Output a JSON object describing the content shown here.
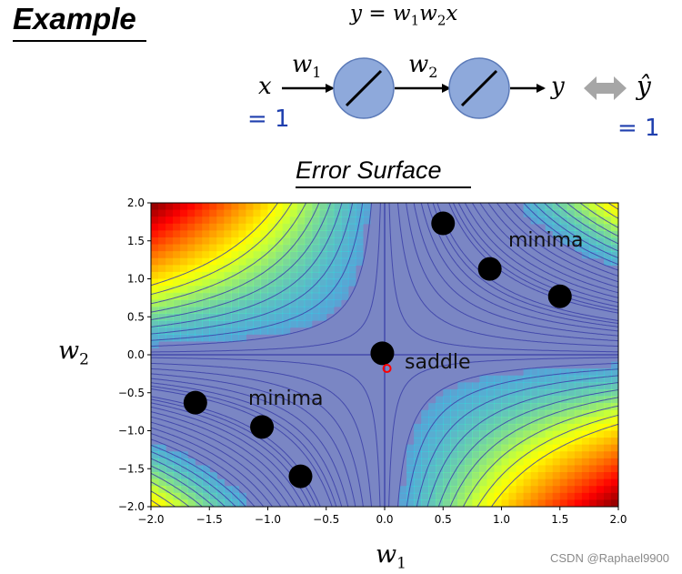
{
  "header": {
    "title": "Example",
    "equation": {
      "y": "y",
      "eq": "=",
      "w1": "w",
      "w1_sub": "1",
      "w2": "w",
      "w2_sub": "2",
      "x": "x"
    }
  },
  "network": {
    "input_label": "x",
    "input_value": "= 1",
    "w1_label": "w",
    "w1_sub": "1",
    "w2_label": "w",
    "w2_sub": "2",
    "output_label": "y",
    "target_label": "ŷ",
    "target_value": "= 1",
    "colors": {
      "neuron_fill": "#8ea9db",
      "neuron_stroke": "#5b7ab8",
      "compare_arrow": "#a6a6a6",
      "value_text": "#1f3fae"
    }
  },
  "chart_data": {
    "type": "heatmap",
    "title": "Error Surface",
    "xlabel": "w",
    "xlabel_sub": "1",
    "ylabel": "w",
    "ylabel_sub": "2",
    "xlim": [
      -2.0,
      2.0
    ],
    "ylim": [
      -2.0,
      2.0
    ],
    "xticks": [
      "−2.0",
      "−1.5",
      "−1.0",
      "−0.5",
      "0.0",
      "0.5",
      "1.0",
      "1.5",
      "2.0"
    ],
    "yticks": [
      "2.0",
      "1.5",
      "1.0",
      "0.5",
      "0.0",
      "−0.5",
      "−1.0",
      "−1.5",
      "−2.0"
    ],
    "xtick_values": [
      -2.0,
      -1.5,
      -1.0,
      -0.5,
      0.0,
      0.5,
      1.0,
      1.5,
      2.0
    ],
    "ytick_values": [
      2.0,
      1.5,
      1.0,
      0.5,
      0.0,
      -0.5,
      -1.0,
      -1.5,
      -2.0
    ],
    "function": "(1 - w1*w2)^2",
    "contour_levels": [
      0.01,
      0.03,
      0.07,
      0.14,
      0.25,
      0.4,
      0.6,
      0.85,
      1.15,
      1.5,
      1.9,
      2.4,
      3.0,
      3.7,
      4.5,
      5.5,
      6.7,
      8.0
    ],
    "minima_points": [
      {
        "w1": 0.5,
        "w2": 1.73
      },
      {
        "w1": 0.9,
        "w2": 1.13
      },
      {
        "w1": 1.5,
        "w2": 0.77
      },
      {
        "w1": -1.62,
        "w2": -0.63
      },
      {
        "w1": -1.05,
        "w2": -0.95
      },
      {
        "w1": -0.72,
        "w2": -1.6
      }
    ],
    "saddle_point": {
      "w1": -0.02,
      "w2": 0.02
    },
    "start_point": {
      "w1": 0.02,
      "w2": -0.18
    },
    "annotations": {
      "minima_top": "minima",
      "minima_bottom": "minima",
      "saddle": "saddle"
    },
    "colors": {
      "contour": "#3b3fa8",
      "point": "#000000",
      "start": "#ff0000",
      "base": "#7a86c4"
    }
  },
  "watermark": "CSDN @Raphael9900"
}
